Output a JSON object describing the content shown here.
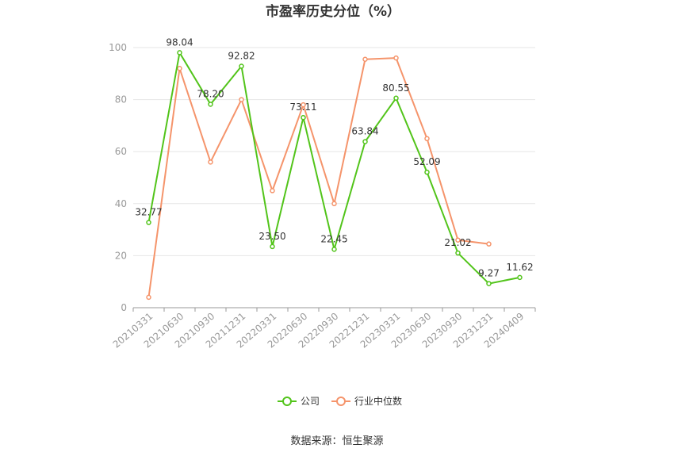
{
  "chart_data": {
    "type": "line",
    "title": "市盈率历史分位（%）",
    "xlabel": "",
    "ylabel": "",
    "categories": [
      "20210331",
      "20210630",
      "20210930",
      "20211231",
      "20220331",
      "20220630",
      "20220930",
      "20221231",
      "20230331",
      "20230630",
      "20230930",
      "20231231",
      "20240409"
    ],
    "ylim": [
      0,
      100
    ],
    "yticks": [
      0,
      20,
      40,
      60,
      80,
      100
    ],
    "grid": true,
    "legend_position": "bottom",
    "series": [
      {
        "name": "公司",
        "color": "#52c41a",
        "values": [
          32.77,
          98.04,
          78.2,
          92.82,
          23.5,
          73.11,
          22.45,
          63.84,
          80.55,
          52.09,
          21.02,
          9.27,
          11.62
        ],
        "labels": [
          "32.77",
          "98.04",
          "78.20",
          "92.82",
          "23.50",
          "73.11",
          "22.45",
          "63.84",
          "80.55",
          "52.09",
          "21.02",
          "9.27",
          "11.62"
        ]
      },
      {
        "name": "行业中位数",
        "color": "#f5946b",
        "values": [
          4,
          92,
          56,
          80,
          45,
          78,
          40,
          95.5,
          96,
          65,
          26,
          24.5,
          null
        ]
      }
    ],
    "source": "数据来源：恒生聚源"
  }
}
